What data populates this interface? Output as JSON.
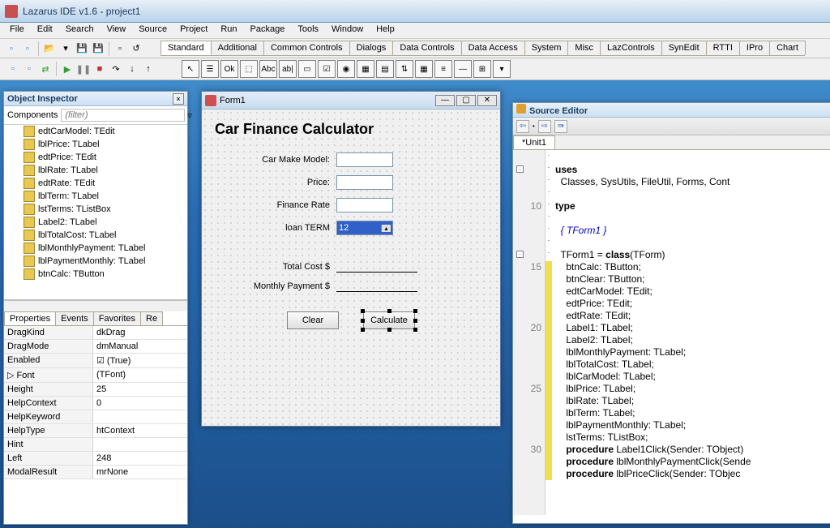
{
  "window": {
    "title": "Lazarus IDE v1.6 - project1"
  },
  "menu": [
    "File",
    "Edit",
    "Search",
    "View",
    "Source",
    "Project",
    "Run",
    "Package",
    "Tools",
    "Window",
    "Help"
  ],
  "componentTabs": [
    "Standard",
    "Additional",
    "Common Controls",
    "Dialogs",
    "Data Controls",
    "Data Access",
    "System",
    "Misc",
    "LazControls",
    "SynEdit",
    "RTTI",
    "IPro",
    "Chart"
  ],
  "paletteItems": [
    "↖",
    "☰",
    "Ok",
    "⬚",
    "Abc",
    "ab|",
    "▭",
    "☑",
    "◉",
    "▦",
    "▤",
    "⇅",
    "▦",
    "≡",
    "—",
    "⊞",
    "▾"
  ],
  "objectInspector": {
    "title": "Object Inspector",
    "componentsLabel": "Components",
    "filterPlaceholder": "(filter)",
    "tree": [
      "edtCarModel: TEdit",
      "lblPrice: TLabel",
      "edtPrice: TEdit",
      "lblRate: TLabel",
      "edtRate: TEdit",
      "lblTerm: TLabel",
      "lstTerms: TListBox",
      "Label2: TLabel",
      "lblTotalCost: TLabel",
      "lblMonthlyPayment: TLabel",
      "lblPaymentMonthly: TLabel",
      "btnCalc: TButton"
    ],
    "propTabs": [
      "Properties",
      "Events",
      "Favorites",
      "Re"
    ],
    "props": [
      {
        "n": "DragKind",
        "v": "dkDrag"
      },
      {
        "n": "DragMode",
        "v": "dmManual"
      },
      {
        "n": "Enabled",
        "v": "(True)",
        "check": true
      },
      {
        "n": "Font",
        "v": "(TFont)",
        "expand": true
      },
      {
        "n": "Height",
        "v": "25"
      },
      {
        "n": "HelpContext",
        "v": "0"
      },
      {
        "n": "HelpKeyword",
        "v": ""
      },
      {
        "n": "HelpType",
        "v": "htContext"
      },
      {
        "n": "Hint",
        "v": ""
      },
      {
        "n": "Left",
        "v": "248"
      },
      {
        "n": "ModalResult",
        "v": "mrNone"
      }
    ]
  },
  "formDesigner": {
    "title": "Form1",
    "heading": "Car Finance Calculator",
    "labels": {
      "carModel": "Car Make Model:",
      "price": "Price:",
      "rate": "Finance Rate",
      "term": "loan TERM",
      "totalCost": "Total Cost  $",
      "monthly": "Monthly Payment $"
    },
    "termValue": "12",
    "buttons": {
      "clear": "Clear",
      "calc": "Calculate"
    }
  },
  "sourceEditor": {
    "title": "Source Editor",
    "tab": "*Unit1",
    "code": [
      {
        "n": "",
        "t": ""
      },
      {
        "n": "",
        "t": "uses",
        "kw": true,
        "fold": true
      },
      {
        "n": "",
        "t": "  Classes, SysUtils, FileUtil, Forms, Cont"
      },
      {
        "n": "",
        "t": ""
      },
      {
        "n": "10",
        "t": "type",
        "kw": true
      },
      {
        "n": "",
        "t": ""
      },
      {
        "n": "",
        "t": "  { TForm1 }",
        "cm": true
      },
      {
        "n": "",
        "t": ""
      },
      {
        "n": "",
        "t": "  TForm1 = class(TForm)",
        "kw2": true,
        "fold": true
      },
      {
        "n": "15",
        "t": "    btnCalc: TButton;",
        "y": true
      },
      {
        "n": "",
        "t": "    btnClear: TButton;",
        "y": true
      },
      {
        "n": "",
        "t": "    edtCarModel: TEdit;",
        "y": true
      },
      {
        "n": "",
        "t": "    edtPrice: TEdit;",
        "y": true
      },
      {
        "n": "",
        "t": "    edtRate: TEdit;",
        "y": true
      },
      {
        "n": "20",
        "t": "    Label1: TLabel;",
        "y": true
      },
      {
        "n": "",
        "t": "    Label2: TLabel;",
        "y": true
      },
      {
        "n": "",
        "t": "    lblMonthlyPayment: TLabel;",
        "y": true
      },
      {
        "n": "",
        "t": "    lblTotalCost: TLabel;",
        "y": true
      },
      {
        "n": "",
        "t": "    lblCarModel: TLabel;",
        "y": true
      },
      {
        "n": "25",
        "t": "    lblPrice: TLabel;",
        "y": true
      },
      {
        "n": "",
        "t": "    lblRate: TLabel;",
        "y": true
      },
      {
        "n": "",
        "t": "    lblTerm: TLabel;",
        "y": true
      },
      {
        "n": "",
        "t": "    lblPaymentMonthly: TLabel;",
        "y": true
      },
      {
        "n": "",
        "t": "    lstTerms: TListBox;",
        "y": true
      },
      {
        "n": "30",
        "t": "    procedure Label1Click(Sender: TObject)",
        "kw2": true,
        "y": true
      },
      {
        "n": "",
        "t": "    procedure lblMonthlyPaymentClick(Sende",
        "kw2": true,
        "y": true
      },
      {
        "n": "",
        "t": "    procedure lblPriceClick(Sender: TObjec",
        "kw2": true,
        "y": true
      }
    ]
  }
}
